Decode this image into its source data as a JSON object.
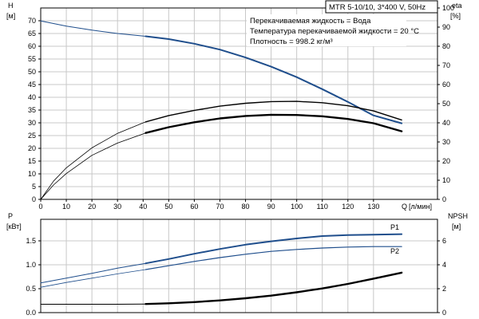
{
  "header": {
    "title": "MTR 5-10/10, 3*400 V, 50Hz"
  },
  "info": {
    "line1": "Перекачиваемая жидкость = Вода",
    "line2": "Температура перекачиваемой жидкости = 20 °C",
    "line3": "Плотность = 998.2 кг/м³"
  },
  "colors": {
    "blue": "#1f4e8c",
    "black": "#000000",
    "grid": "#c8c8c8"
  },
  "chart_data": [
    {
      "type": "line",
      "id": "head-efficiency",
      "title": "",
      "xlabel": "Q [л/мин]",
      "x_axis": {
        "label": "Q",
        "unit": "[л/мин]",
        "range": [
          0,
          155
        ],
        "ticks": [
          0,
          10,
          20,
          30,
          40,
          50,
          60,
          70,
          80,
          90,
          100,
          110,
          120,
          130
        ]
      },
      "y_left": {
        "label": "H",
        "unit": "[м]",
        "range": [
          0,
          75
        ],
        "ticks": [
          0,
          5,
          10,
          15,
          20,
          25,
          30,
          35,
          40,
          45,
          50,
          55,
          60,
          65,
          70
        ]
      },
      "y_right": {
        "label": "eta",
        "unit": "[%]",
        "range": [
          0,
          100
        ],
        "ticks": [
          0,
          10,
          20,
          30,
          40,
          50,
          60,
          70,
          80,
          90,
          100
        ]
      },
      "grid": true,
      "series": [
        {
          "axis": "left",
          "color": "#1f4e8c",
          "segments": [
            {
              "width": 1,
              "x": [
                0,
                10,
                20,
                30,
                41
              ],
              "y": [
                69.9,
                67.9,
                66.3,
                65.0,
                63.9
              ]
            },
            {
              "width": 2,
              "x": [
                41,
                50,
                60,
                70,
                80,
                90,
                100,
                110,
                120,
                130,
                141
              ],
              "y": [
                63.9,
                62.8,
                61.0,
                58.7,
                55.6,
                52.0,
                47.9,
                43.2,
                38.2,
                32.9,
                29.8
              ]
            }
          ]
        },
        {
          "axis": "right",
          "color": "#000000",
          "segments": [
            {
              "width": 0.8,
              "x": [
                0,
                5,
                10,
                20,
                30,
                41
              ],
              "y": [
                0,
                9.5,
                16.5,
                26.9,
                34.5,
                40.5
              ]
            },
            {
              "width": 1.4,
              "x": [
                41,
                50,
                60,
                70,
                80,
                90,
                100,
                110,
                120,
                130,
                141
              ],
              "y": [
                40.5,
                43.8,
                46.5,
                48.7,
                50.2,
                51.1,
                51.2,
                50.5,
                48.9,
                46.2,
                41.5
              ]
            }
          ]
        },
        {
          "axis": "right",
          "color": "#000000",
          "segments": [
            {
              "width": 0.8,
              "x": [
                0,
                5,
                10,
                20,
                30,
                41
              ],
              "y": [
                0,
                7.5,
                13.5,
                23.0,
                29.4,
                34.7
              ]
            },
            {
              "width": 2.4,
              "x": [
                41,
                50,
                60,
                70,
                80,
                90,
                100,
                110,
                120,
                130,
                141
              ],
              "y": [
                34.7,
                37.7,
                40.3,
                42.3,
                43.6,
                44.2,
                44.1,
                43.4,
                42.0,
                39.8,
                35.6
              ]
            }
          ]
        }
      ]
    },
    {
      "type": "line",
      "id": "power-npsh",
      "title": "",
      "xlabel": "",
      "y_left": {
        "label": "P",
        "unit": "[кВт]",
        "range": [
          0,
          1.95
        ],
        "ticks": [
          0.0,
          0.5,
          1.0,
          1.5
        ],
        "tick_labels": [
          "0.0",
          "0.5",
          "1.0",
          "1.5"
        ]
      },
      "y_right": {
        "label": "NPSH",
        "unit": "[м]",
        "range": [
          0,
          7.8
        ],
        "ticks": [
          0,
          2,
          4,
          6
        ]
      },
      "grid": true,
      "series": [
        {
          "name": "P1",
          "axis": "left",
          "color": "#1f4e8c",
          "segments": [
            {
              "width": 1,
              "x": [
                0,
                10,
                20,
                30,
                41
              ],
              "y": [
                0.62,
                0.72,
                0.82,
                0.93,
                1.03
              ]
            },
            {
              "width": 2,
              "x": [
                41,
                50,
                60,
                70,
                80,
                90,
                100,
                110,
                120,
                130,
                141
              ],
              "y": [
                1.03,
                1.12,
                1.23,
                1.33,
                1.42,
                1.49,
                1.55,
                1.6,
                1.62,
                1.63,
                1.64
              ]
            }
          ]
        },
        {
          "name": "P2",
          "axis": "left",
          "color": "#1f4e8c",
          "segments": [
            {
              "width": 0.8,
              "x": [
                0,
                10,
                20,
                30,
                41
              ],
              "y": [
                0.53,
                0.63,
                0.72,
                0.81,
                0.9
              ]
            },
            {
              "width": 1.2,
              "x": [
                41,
                50,
                60,
                70,
                80,
                90,
                100,
                110,
                120,
                130,
                141
              ],
              "y": [
                0.9,
                0.98,
                1.07,
                1.15,
                1.22,
                1.28,
                1.32,
                1.35,
                1.37,
                1.38,
                1.38
              ]
            }
          ]
        },
        {
          "axis": "right",
          "color": "#000000",
          "segments": [
            {
              "width": 1,
              "x": [
                0,
                10,
                20,
                30,
                41
              ],
              "y": [
                0.7,
                0.7,
                0.7,
                0.7,
                0.72
              ]
            },
            {
              "width": 2.4,
              "x": [
                41,
                50,
                60,
                70,
                80,
                90,
                100,
                110,
                120,
                130,
                141
              ],
              "y": [
                0.72,
                0.78,
                0.88,
                1.02,
                1.2,
                1.42,
                1.7,
                2.02,
                2.4,
                2.84,
                3.34
              ]
            }
          ]
        }
      ]
    }
  ]
}
